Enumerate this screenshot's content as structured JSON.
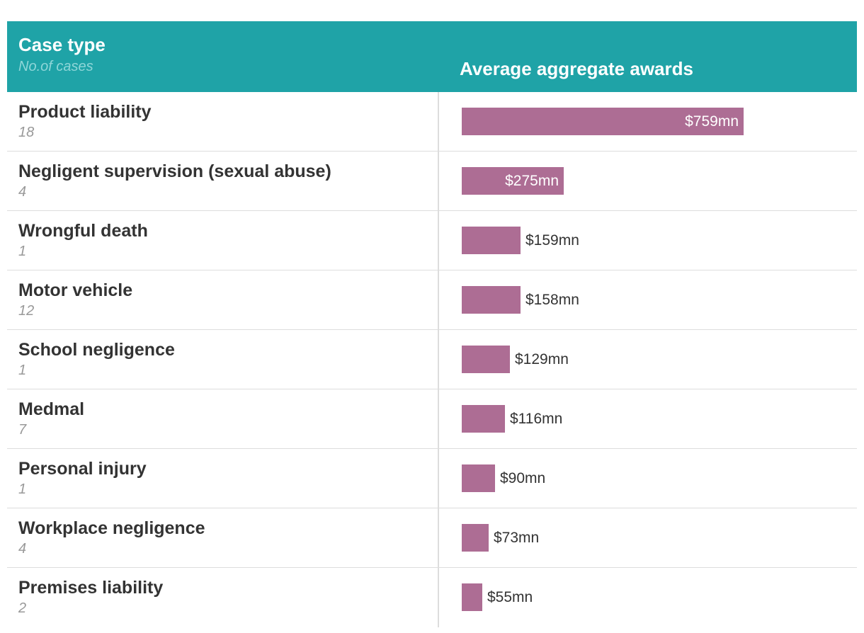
{
  "header": {
    "case_type": "Case type",
    "no_of_cases": "No.of cases",
    "average_awards": "Average aggregate awards"
  },
  "colors": {
    "header_bg": "#1fa3a7",
    "bar": "#ad6d94"
  },
  "chart_data": {
    "type": "bar",
    "orientation": "horizontal",
    "title": "Average aggregate awards",
    "xlabel": "Average aggregate awards",
    "ylabel": "Case type",
    "unit": "$mn",
    "xlim": [
      0,
      759
    ],
    "categories": [
      "Product liability",
      "Negligent supervision (sexual abuse)",
      "Wrongful death",
      "Motor vehicle",
      "School negligence",
      "Medmal",
      "Personal injury",
      "Workplace negligence",
      "Premises liability"
    ],
    "case_counts": [
      "18",
      "4",
      "1",
      "12",
      "1",
      "7",
      "1",
      "4",
      "2"
    ],
    "values": [
      759,
      275,
      159,
      158,
      129,
      116,
      90,
      73,
      55
    ],
    "labels": [
      "$759mn",
      "$275mn",
      "$159mn",
      "$158mn",
      "$129mn",
      "$116mn",
      "$90mn",
      "$73mn",
      "$55mn"
    ]
  }
}
